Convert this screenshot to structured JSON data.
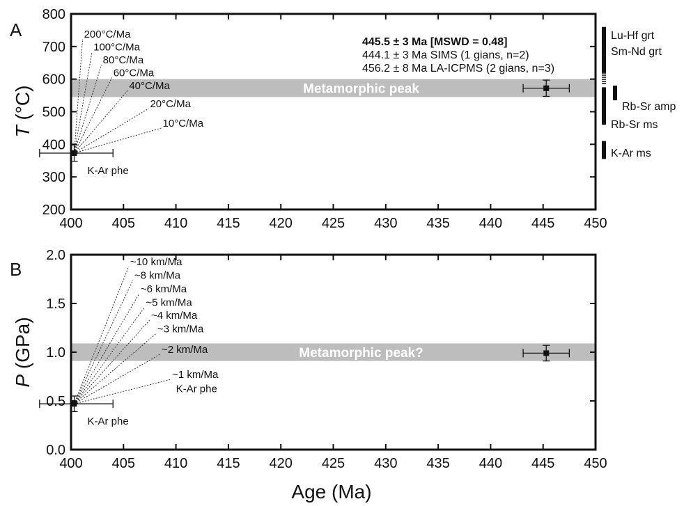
{
  "figure": {
    "xlabel": "Age (Ma)"
  },
  "chart_data": [
    {
      "type": "scatter",
      "panel": "A",
      "ylabel_var": "T",
      "ylabel_unit": "(°C)",
      "xlim": [
        400,
        450
      ],
      "ylim": [
        200,
        800
      ],
      "x_ticks": [
        "400",
        "405",
        "410",
        "415",
        "420",
        "425",
        "430",
        "435",
        "440",
        "445",
        "450"
      ],
      "y_ticks": [
        "200",
        "300",
        "400",
        "500",
        "600",
        "700",
        "800"
      ],
      "band": {
        "y0": 545,
        "y1": 600,
        "label": "Metamorphic peak"
      },
      "points": [
        {
          "x": 400.3,
          "y": 373,
          "xerr_minus": 3.3,
          "xerr_plus": 3.7,
          "yerr": 25,
          "label": "K-Ar phe"
        },
        {
          "x": 445.3,
          "y": 572,
          "xerr_minus": 2.2,
          "xerr_plus": 2.2,
          "yerr": 25
        }
      ],
      "rate_lines": [
        {
          "label": "200°C/Ma",
          "x_end": 401.1
        },
        {
          "label": "100°C/Ma",
          "x_end": 402.0
        },
        {
          "label": "80°C/Ma",
          "x_end": 402.9
        },
        {
          "label": "60°C/Ma",
          "x_end": 403.9
        },
        {
          "label": "40°C/Ma",
          "x_end": 405.4
        },
        {
          "label": "20°C/Ma",
          "x_end": 407.4
        },
        {
          "label": "10°C/Ma",
          "x_end": 408.6
        }
      ],
      "age_results": [
        {
          "text": "445.5 ± 3 Ma [MSWD = 0.48]",
          "bold": true
        },
        {
          "text": "444.1 ± 3 Ma SIMS (1 gians, n=2)",
          "bold": false
        },
        {
          "text": "456.2 ± 8 Ma LA-ICPMS (2 gians, n=3)",
          "bold": false
        }
      ],
      "side_bars": [
        {
          "label": "Lu-Hf grt",
          "y0": 675,
          "y1": 760,
          "style": "solid"
        },
        {
          "label": "Sm-Nd grt",
          "y0": 620,
          "y1": 675,
          "style": "solid"
        },
        {
          "label": "",
          "y0": 585,
          "y1": 620,
          "style": "dashed"
        },
        {
          "label": "Rb-Sr amp",
          "y0": 535,
          "y1": 580,
          "style": "solid",
          "offset": true
        },
        {
          "label": "Rb-Sr ms",
          "y0": 460,
          "y1": 575,
          "style": "solid"
        },
        {
          "label": "K-Ar ms",
          "y0": 355,
          "y1": 410,
          "style": "solid"
        }
      ]
    },
    {
      "type": "scatter",
      "panel": "B",
      "ylabel_var": "P",
      "ylabel_unit": "(GPa)",
      "xlim": [
        400,
        450
      ],
      "ylim": [
        0.0,
        2.0
      ],
      "x_ticks": [
        "400",
        "405",
        "410",
        "415",
        "420",
        "425",
        "430",
        "435",
        "440",
        "445",
        "450"
      ],
      "y_ticks": [
        "0.0",
        "0.5",
        "1.0",
        "1.5",
        "2.0"
      ],
      "band": {
        "y0": 0.91,
        "y1": 1.09,
        "label": "Metamorphic peak?"
      },
      "points": [
        {
          "x": 400.3,
          "y": 0.47,
          "xerr_minus": 3.3,
          "xerr_plus": 3.7,
          "yerr": 0.08,
          "label": "K-Ar phe"
        },
        {
          "x": 445.3,
          "y": 0.99,
          "xerr_minus": 2.2,
          "xerr_plus": 2.2,
          "yerr": 0.08
        }
      ],
      "rate_lines": [
        {
          "label": "~10 km/Ma",
          "x_end": 405.5,
          "y_end": 1.88
        },
        {
          "label": "~8 km/Ma",
          "x_end": 405.9,
          "y_end": 1.74
        },
        {
          "label": "~6 km/Ma",
          "x_end": 406.5,
          "y_end": 1.6
        },
        {
          "label": "~5 km/Ma",
          "x_end": 407.0,
          "y_end": 1.46
        },
        {
          "label": "~4 km/Ma",
          "x_end": 407.5,
          "y_end": 1.33
        },
        {
          "label": "~3 km/Ma",
          "x_end": 408.1,
          "y_end": 1.19
        },
        {
          "label": "~2 km/Ma",
          "x_end": 408.5,
          "y_end": 0.98
        },
        {
          "label": "~1 km/Ma",
          "x_end": 409.5,
          "y_end": 0.72
        }
      ],
      "extra_labels": [
        {
          "text": "K-Ar phe",
          "x": 410.0,
          "y": 0.59
        }
      ]
    }
  ]
}
